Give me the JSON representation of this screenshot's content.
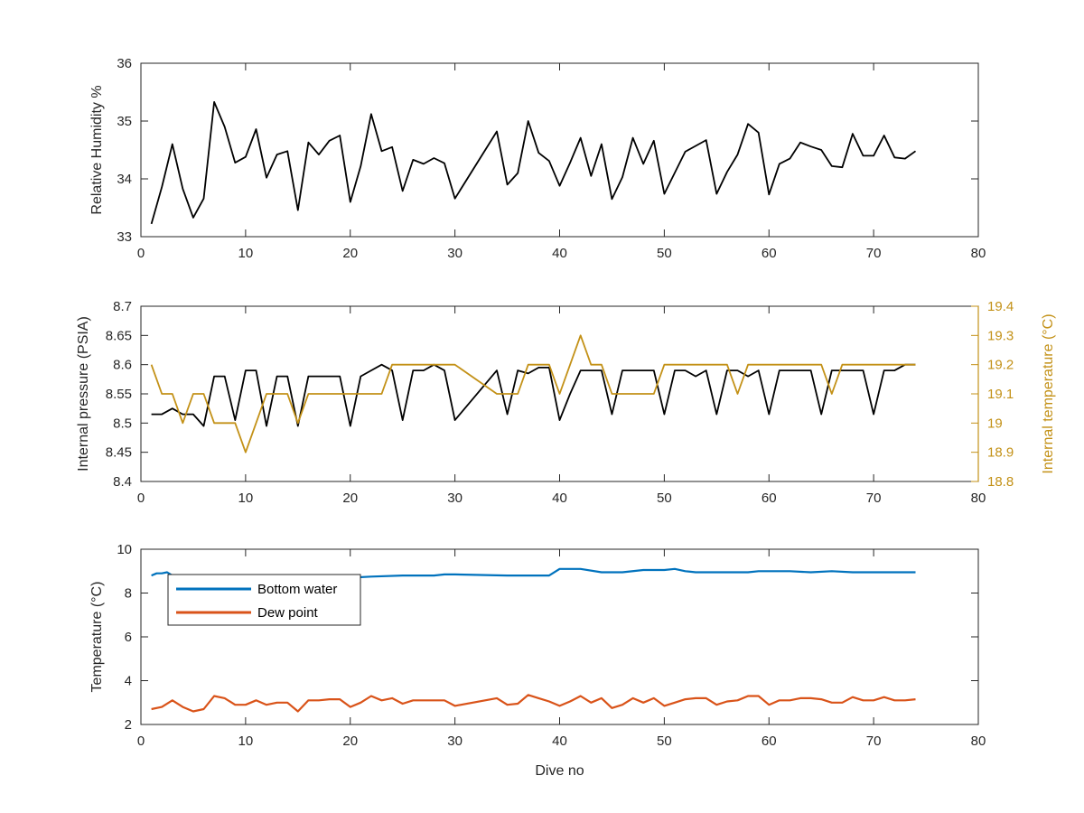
{
  "colors": {
    "axis": "#262626",
    "rh_line": "#000000",
    "pressure_line": "#000000",
    "internal_temp_line": "#C39117",
    "bottom_water_line": "#0072BD",
    "dew_point_line": "#D95319"
  },
  "chart_data": [
    {
      "type": "line",
      "xlabel": "",
      "ylabel": "Relative Humidity %",
      "xlim": [
        0,
        80
      ],
      "ylim": [
        33,
        36
      ],
      "xticks": [
        0,
        10,
        20,
        30,
        40,
        50,
        60,
        70,
        80
      ],
      "yticks": [
        33,
        34,
        35,
        36
      ],
      "grid": false,
      "series": [
        {
          "x": [
            1,
            2,
            3,
            4,
            5,
            6,
            7,
            8,
            9,
            10,
            11,
            12,
            13,
            14,
            15,
            16,
            17,
            18,
            19,
            20,
            21,
            22,
            23,
            24,
            25,
            26,
            27,
            28,
            29,
            30,
            34,
            35,
            36,
            37,
            38,
            39,
            40,
            41,
            42,
            43,
            44,
            45,
            46,
            47,
            48,
            49,
            50,
            52,
            54,
            55,
            56,
            57,
            58,
            59,
            60,
            61,
            62,
            63,
            64,
            65,
            66,
            67,
            68,
            69,
            70,
            71,
            72,
            73,
            74
          ],
          "y": [
            33.22,
            33.86,
            34.6,
            33.83,
            33.33,
            33.66,
            35.33,
            34.9,
            34.28,
            34.38,
            34.86,
            34.02,
            34.42,
            34.48,
            33.46,
            34.63,
            34.42,
            34.66,
            34.75,
            33.6,
            34.22,
            35.12,
            34.48,
            34.55,
            33.79,
            34.33,
            34.26,
            34.36,
            34.27,
            33.66,
            34.82,
            33.9,
            34.1,
            35.0,
            34.45,
            34.31,
            33.88,
            34.28,
            34.71,
            34.05,
            34.6,
            33.65,
            34.03,
            34.71,
            34.26,
            34.66,
            33.74,
            34.47,
            34.67,
            33.74,
            34.12,
            34.42,
            34.95,
            34.8,
            33.73,
            34.26,
            34.35,
            34.63,
            34.56,
            34.5,
            34.22,
            34.2,
            34.78,
            34.4,
            34.4,
            34.75,
            34.37,
            34.35,
            34.48
          ]
        }
      ]
    },
    {
      "type": "line",
      "xlabel": "",
      "ylabel": "Internal pressure (PSIA)",
      "y2label": "Internal temperature (°C)",
      "xlim": [
        0,
        80
      ],
      "ylim": [
        8.4,
        8.7
      ],
      "y2lim": [
        18.8,
        19.4
      ],
      "xticks": [
        0,
        10,
        20,
        30,
        40,
        50,
        60,
        70,
        80
      ],
      "yticks": [
        8.4,
        8.45,
        8.5,
        8.55,
        8.6,
        8.65,
        8.7
      ],
      "y2ticks": [
        18.8,
        18.9,
        19,
        19.1,
        19.2,
        19.3,
        19.4
      ],
      "grid": false,
      "series": [
        {
          "axis": "left",
          "x": [
            1,
            2,
            3,
            4,
            5,
            6,
            7,
            8,
            9,
            10,
            11,
            12,
            13,
            14,
            15,
            16,
            17,
            18,
            19,
            20,
            21,
            22,
            23,
            24,
            25,
            26,
            27,
            28,
            29,
            30,
            34,
            35,
            36,
            37,
            38,
            39,
            40,
            41,
            42,
            43,
            44,
            45,
            46,
            47,
            48,
            49,
            50,
            51,
            52,
            53,
            54,
            55,
            56,
            57,
            58,
            59,
            60,
            61,
            62,
            63,
            64,
            65,
            66,
            67,
            68,
            69,
            70,
            71,
            72,
            73,
            74
          ],
          "y": [
            8.515,
            8.515,
            8.525,
            8.515,
            8.515,
            8.495,
            8.58,
            8.58,
            8.505,
            8.59,
            8.59,
            8.495,
            8.58,
            8.58,
            8.495,
            8.58,
            8.58,
            8.58,
            8.58,
            8.495,
            8.58,
            8.59,
            8.6,
            8.59,
            8.505,
            8.59,
            8.59,
            8.6,
            8.59,
            8.505,
            8.59,
            8.515,
            8.59,
            8.585,
            8.595,
            8.595,
            8.505,
            8.55,
            8.59,
            8.59,
            8.59,
            8.515,
            8.59,
            8.59,
            8.59,
            8.59,
            8.515,
            8.59,
            8.59,
            8.58,
            8.59,
            8.515,
            8.59,
            8.59,
            8.58,
            8.59,
            8.515,
            8.59,
            8.59,
            8.59,
            8.59,
            8.515,
            8.59,
            8.59,
            8.59,
            8.59,
            8.515,
            8.59,
            8.59,
            8.6,
            8.6
          ]
        },
        {
          "axis": "right",
          "x": [
            1,
            2,
            3,
            4,
            5,
            6,
            7,
            8,
            9,
            10,
            11,
            12,
            13,
            14,
            15,
            16,
            17,
            18,
            19,
            20,
            21,
            22,
            23,
            24,
            25,
            26,
            27,
            28,
            29,
            30,
            34,
            35,
            36,
            37,
            38,
            39,
            40,
            41,
            42,
            43,
            44,
            45,
            46,
            47,
            48,
            49,
            50,
            51,
            52,
            53,
            54,
            55,
            56,
            57,
            58,
            59,
            60,
            61,
            62,
            63,
            64,
            65,
            66,
            67,
            68,
            69,
            70,
            71,
            72,
            73,
            74
          ],
          "y": [
            19.2,
            19.1,
            19.1,
            19.0,
            19.1,
            19.1,
            19.0,
            19.0,
            19.0,
            18.9,
            19.0,
            19.1,
            19.1,
            19.1,
            19.0,
            19.1,
            19.1,
            19.1,
            19.1,
            19.1,
            19.1,
            19.1,
            19.1,
            19.2,
            19.2,
            19.2,
            19.2,
            19.2,
            19.2,
            19.2,
            19.1,
            19.1,
            19.1,
            19.2,
            19.2,
            19.2,
            19.1,
            19.2,
            19.3,
            19.2,
            19.2,
            19.1,
            19.1,
            19.1,
            19.1,
            19.1,
            19.2,
            19.2,
            19.2,
            19.2,
            19.2,
            19.2,
            19.2,
            19.1,
            19.2,
            19.2,
            19.2,
            19.2,
            19.2,
            19.2,
            19.2,
            19.2,
            19.1,
            19.2,
            19.2,
            19.2,
            19.2,
            19.2,
            19.2,
            19.2,
            19.2
          ]
        }
      ]
    },
    {
      "type": "line",
      "xlabel": "Dive no",
      "ylabel": "Temperature (°C)",
      "xlim": [
        0,
        80
      ],
      "ylim": [
        2,
        10
      ],
      "xticks": [
        0,
        10,
        20,
        30,
        40,
        50,
        60,
        70,
        80
      ],
      "yticks": [
        2,
        4,
        6,
        8,
        10
      ],
      "grid": false,
      "legend": "top-left",
      "series": [
        {
          "name": "Bottom water",
          "x": [
            1,
            1.5,
            2,
            2.5,
            3,
            5,
            10,
            15,
            20,
            22,
            25,
            28,
            29,
            30,
            35,
            39,
            40,
            42,
            44,
            46,
            48,
            50,
            51,
            52,
            53,
            55,
            58,
            59,
            60,
            62,
            64,
            66,
            68,
            70,
            72,
            74
          ],
          "y": [
            8.8,
            8.9,
            8.9,
            8.95,
            8.8,
            8.8,
            8.8,
            8.75,
            8.7,
            8.75,
            8.8,
            8.8,
            8.85,
            8.85,
            8.8,
            8.8,
            9.1,
            9.1,
            8.95,
            8.95,
            9.05,
            9.05,
            9.1,
            9.0,
            8.95,
            8.95,
            8.95,
            9.0,
            9.0,
            9.0,
            8.95,
            9.0,
            8.95,
            8.95,
            8.95,
            8.95
          ]
        },
        {
          "name": "Dew point",
          "x": [
            1,
            2,
            3,
            4,
            5,
            6,
            7,
            8,
            9,
            10,
            11,
            12,
            13,
            14,
            15,
            16,
            17,
            18,
            19,
            20,
            21,
            22,
            23,
            24,
            25,
            26,
            27,
            28,
            29,
            30,
            34,
            35,
            36,
            37,
            38,
            39,
            40,
            41,
            42,
            43,
            44,
            45,
            46,
            47,
            48,
            49,
            50,
            51,
            52,
            53,
            54,
            55,
            56,
            57,
            58,
            59,
            60,
            61,
            62,
            63,
            64,
            65,
            66,
            67,
            68,
            69,
            70,
            71,
            72,
            73,
            74
          ],
          "y": [
            2.7,
            2.8,
            3.1,
            2.8,
            2.6,
            2.7,
            3.3,
            3.2,
            2.9,
            2.9,
            3.1,
            2.9,
            3.0,
            3.0,
            2.6,
            3.1,
            3.1,
            3.15,
            3.15,
            2.8,
            3.0,
            3.3,
            3.1,
            3.2,
            2.95,
            3.1,
            3.1,
            3.1,
            3.1,
            2.85,
            3.2,
            2.9,
            2.95,
            3.35,
            3.2,
            3.05,
            2.85,
            3.05,
            3.3,
            3.0,
            3.2,
            2.75,
            2.9,
            3.2,
            3.0,
            3.2,
            2.85,
            3.0,
            3.15,
            3.2,
            3.2,
            2.9,
            3.05,
            3.1,
            3.3,
            3.3,
            2.9,
            3.1,
            3.1,
            3.2,
            3.2,
            3.15,
            3.0,
            3.0,
            3.25,
            3.1,
            3.1,
            3.25,
            3.1,
            3.1,
            3.15
          ]
        }
      ]
    }
  ]
}
